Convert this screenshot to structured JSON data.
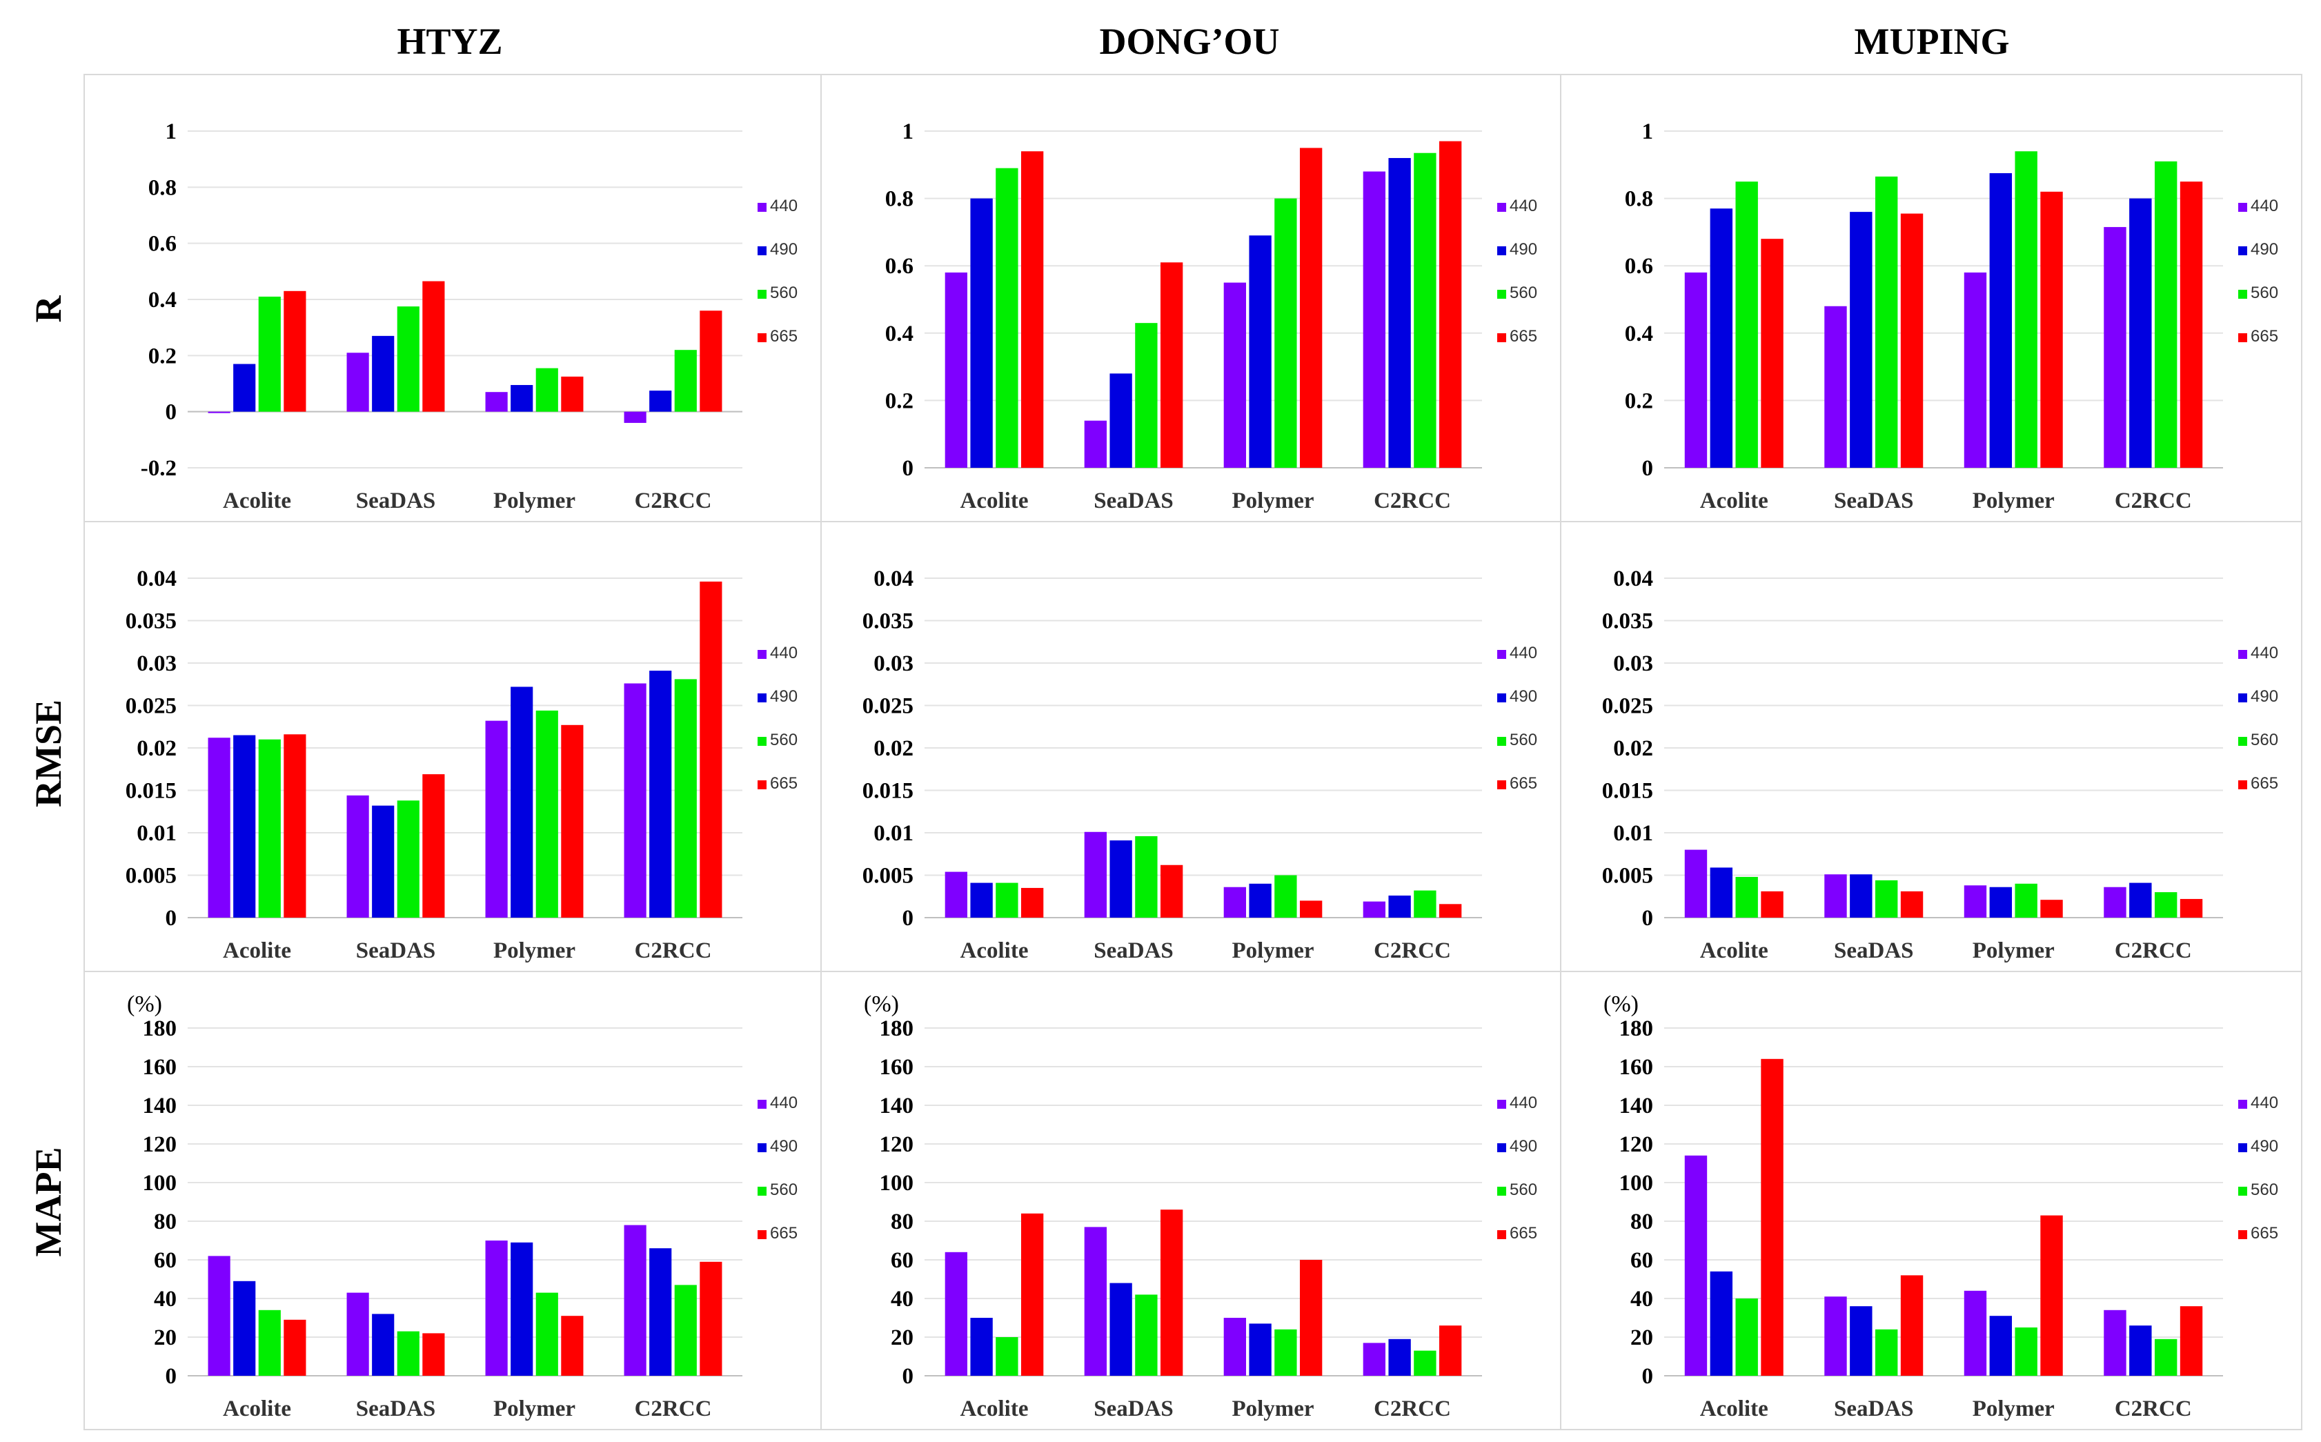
{
  "figure": {
    "columns": [
      "HTYZ",
      "DONG’OU",
      "MUPING"
    ],
    "rows": [
      "R",
      "RMSE",
      "MAPE"
    ],
    "colors": {
      "440": "#7f00ff",
      "490": "#0000e0",
      "560": "#00ee00",
      "665": "#ff0000"
    }
  },
  "chart_data": [
    {
      "id": "R-HTYZ",
      "type": "bar",
      "row": "R",
      "column": "HTYZ",
      "categories": [
        "Acolite",
        "SeaDAS",
        "Polymer",
        "C2RCC"
      ],
      "series": [
        {
          "name": "440",
          "values": [
            -0.005,
            0.21,
            0.07,
            -0.04
          ]
        },
        {
          "name": "490",
          "values": [
            0.17,
            0.27,
            0.095,
            0.075
          ]
        },
        {
          "name": "560",
          "values": [
            0.41,
            0.375,
            0.155,
            0.22
          ]
        },
        {
          "name": "665",
          "values": [
            0.43,
            0.465,
            0.125,
            0.36
          ]
        }
      ],
      "ylim": [
        -0.2,
        1
      ],
      "ticks": [
        -0.2,
        0,
        0.2,
        0.4,
        0.6,
        0.8,
        1
      ],
      "tick_labels": [
        "-0.2",
        "0",
        "0.2",
        "0.4",
        "0.6",
        "0.8",
        "1"
      ],
      "unit": ""
    },
    {
      "id": "R-DONGOU",
      "type": "bar",
      "row": "R",
      "column": "DONG’OU",
      "categories": [
        "Acolite",
        "SeaDAS",
        "Polymer",
        "C2RCC"
      ],
      "series": [
        {
          "name": "440",
          "values": [
            0.58,
            0.14,
            0.55,
            0.88
          ]
        },
        {
          "name": "490",
          "values": [
            0.8,
            0.28,
            0.69,
            0.92
          ]
        },
        {
          "name": "560",
          "values": [
            0.89,
            0.43,
            0.8,
            0.935
          ]
        },
        {
          "name": "665",
          "values": [
            0.94,
            0.61,
            0.95,
            0.97
          ]
        }
      ],
      "ylim": [
        0,
        1
      ],
      "ticks": [
        0,
        0.2,
        0.4,
        0.6,
        0.8,
        1
      ],
      "tick_labels": [
        "0",
        "0.2",
        "0.4",
        "0.6",
        "0.8",
        "1"
      ],
      "unit": ""
    },
    {
      "id": "R-MUPING",
      "type": "bar",
      "row": "R",
      "column": "MUPING",
      "categories": [
        "Acolite",
        "SeaDAS",
        "Polymer",
        "C2RCC"
      ],
      "series": [
        {
          "name": "440",
          "values": [
            0.58,
            0.48,
            0.58,
            0.715
          ]
        },
        {
          "name": "490",
          "values": [
            0.77,
            0.76,
            0.875,
            0.8
          ]
        },
        {
          "name": "560",
          "values": [
            0.85,
            0.865,
            0.94,
            0.91
          ]
        },
        {
          "name": "665",
          "values": [
            0.68,
            0.755,
            0.82,
            0.85
          ]
        }
      ],
      "ylim": [
        0,
        1
      ],
      "ticks": [
        0,
        0.2,
        0.4,
        0.6,
        0.8,
        1
      ],
      "tick_labels": [
        "0",
        "0.2",
        "0.4",
        "0.6",
        "0.8",
        "1"
      ],
      "unit": ""
    },
    {
      "id": "RMSE-HTYZ",
      "type": "bar",
      "row": "RMSE",
      "column": "HTYZ",
      "categories": [
        "Acolite",
        "SeaDAS",
        "Polymer",
        "C2RCC"
      ],
      "series": [
        {
          "name": "440",
          "values": [
            0.0212,
            0.0144,
            0.0232,
            0.0276
          ]
        },
        {
          "name": "490",
          "values": [
            0.0215,
            0.0132,
            0.0272,
            0.0291
          ]
        },
        {
          "name": "560",
          "values": [
            0.021,
            0.0138,
            0.0244,
            0.0281
          ]
        },
        {
          "name": "665",
          "values": [
            0.0216,
            0.0169,
            0.0227,
            0.0396
          ]
        }
      ],
      "ylim": [
        0,
        0.04
      ],
      "ticks": [
        0,
        0.005,
        0.01,
        0.015,
        0.02,
        0.025,
        0.03,
        0.035,
        0.04
      ],
      "tick_labels": [
        "0",
        "0.005",
        "0.01",
        "0.015",
        "0.02",
        "0.025",
        "0.03",
        "0.035",
        "0.04"
      ],
      "unit": ""
    },
    {
      "id": "RMSE-DONGOU",
      "type": "bar",
      "row": "RMSE",
      "column": "DONG’OU",
      "categories": [
        "Acolite",
        "SeaDAS",
        "Polymer",
        "C2RCC"
      ],
      "series": [
        {
          "name": "440",
          "values": [
            0.0054,
            0.0101,
            0.0036,
            0.0019
          ]
        },
        {
          "name": "490",
          "values": [
            0.0041,
            0.0091,
            0.004,
            0.0026
          ]
        },
        {
          "name": "560",
          "values": [
            0.0041,
            0.0096,
            0.005,
            0.0032
          ]
        },
        {
          "name": "665",
          "values": [
            0.0035,
            0.0062,
            0.002,
            0.0016
          ]
        }
      ],
      "ylim": [
        0,
        0.04
      ],
      "ticks": [
        0,
        0.005,
        0.01,
        0.015,
        0.02,
        0.025,
        0.03,
        0.035,
        0.04
      ],
      "tick_labels": [
        "0",
        "0.005",
        "0.01",
        "0.015",
        "0.02",
        "0.025",
        "0.03",
        "0.035",
        "0.04"
      ],
      "unit": ""
    },
    {
      "id": "RMSE-MUPING",
      "type": "bar",
      "row": "RMSE",
      "column": "MUPING",
      "categories": [
        "Acolite",
        "SeaDAS",
        "Polymer",
        "C2RCC"
      ],
      "series": [
        {
          "name": "440",
          "values": [
            0.008,
            0.0051,
            0.0038,
            0.0036
          ]
        },
        {
          "name": "490",
          "values": [
            0.0059,
            0.0051,
            0.0036,
            0.0041
          ]
        },
        {
          "name": "560",
          "values": [
            0.0048,
            0.0044,
            0.004,
            0.003
          ]
        },
        {
          "name": "665",
          "values": [
            0.0031,
            0.0031,
            0.0021,
            0.0022
          ]
        }
      ],
      "ylim": [
        0,
        0.04
      ],
      "ticks": [
        0,
        0.005,
        0.01,
        0.015,
        0.02,
        0.025,
        0.03,
        0.035,
        0.04
      ],
      "tick_labels": [
        "0",
        "0.005",
        "0.01",
        "0.015",
        "0.02",
        "0.025",
        "0.03",
        "0.035",
        "0.04"
      ],
      "unit": ""
    },
    {
      "id": "MAPE-HTYZ",
      "type": "bar",
      "row": "MAPE",
      "column": "HTYZ",
      "categories": [
        "Acolite",
        "SeaDAS",
        "Polymer",
        "C2RCC"
      ],
      "series": [
        {
          "name": "440",
          "values": [
            62,
            43,
            70,
            78
          ]
        },
        {
          "name": "490",
          "values": [
            49,
            32,
            69,
            66
          ]
        },
        {
          "name": "560",
          "values": [
            34,
            23,
            43,
            47
          ]
        },
        {
          "name": "665",
          "values": [
            29,
            22,
            31,
            59
          ]
        }
      ],
      "ylim": [
        0,
        180
      ],
      "ticks": [
        0,
        20,
        40,
        60,
        80,
        100,
        120,
        140,
        160,
        180
      ],
      "tick_labels": [
        "0",
        "20",
        "40",
        "60",
        "80",
        "100",
        "120",
        "140",
        "160",
        "180"
      ],
      "unit": "(%)"
    },
    {
      "id": "MAPE-DONGOU",
      "type": "bar",
      "row": "MAPE",
      "column": "DONG’OU",
      "categories": [
        "Acolite",
        "SeaDAS",
        "Polymer",
        "C2RCC"
      ],
      "series": [
        {
          "name": "440",
          "values": [
            64,
            77,
            30,
            17
          ]
        },
        {
          "name": "490",
          "values": [
            30,
            48,
            27,
            19
          ]
        },
        {
          "name": "560",
          "values": [
            20,
            42,
            24,
            13
          ]
        },
        {
          "name": "665",
          "values": [
            84,
            86,
            60,
            26
          ]
        }
      ],
      "ylim": [
        0,
        180
      ],
      "ticks": [
        0,
        20,
        40,
        60,
        80,
        100,
        120,
        140,
        160,
        180
      ],
      "tick_labels": [
        "0",
        "20",
        "40",
        "60",
        "80",
        "100",
        "120",
        "140",
        "160",
        "180"
      ],
      "unit": "(%)"
    },
    {
      "id": "MAPE-MUPING",
      "type": "bar",
      "row": "MAPE",
      "column": "MUPING",
      "categories": [
        "Acolite",
        "SeaDAS",
        "Polymer",
        "C2RCC"
      ],
      "series": [
        {
          "name": "440",
          "values": [
            114,
            41,
            44,
            34
          ]
        },
        {
          "name": "490",
          "values": [
            54,
            36,
            31,
            26
          ]
        },
        {
          "name": "560",
          "values": [
            40,
            24,
            25,
            19
          ]
        },
        {
          "name": "665",
          "values": [
            164,
            52,
            83,
            36
          ]
        }
      ],
      "ylim": [
        0,
        180
      ],
      "ticks": [
        0,
        20,
        40,
        60,
        80,
        100,
        120,
        140,
        160,
        180
      ],
      "tick_labels": [
        "0",
        "20",
        "40",
        "60",
        "80",
        "100",
        "120",
        "140",
        "160",
        "180"
      ],
      "unit": "(%)"
    }
  ]
}
